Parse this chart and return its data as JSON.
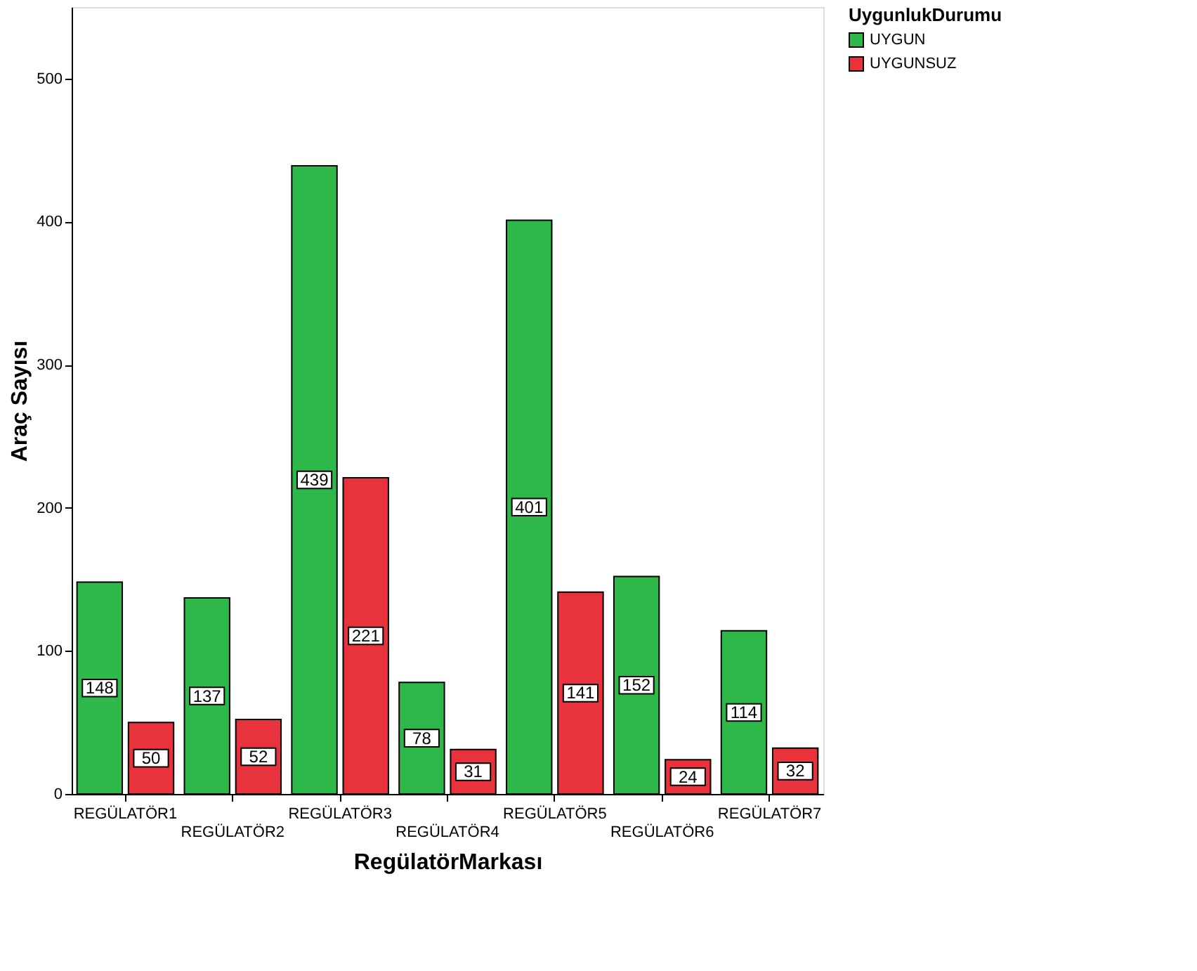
{
  "chart_data": {
    "type": "bar",
    "xlabel": "RegülatörMarkası",
    "ylabel": "Araç Sayısı",
    "legend_title": "UygunlukDurumu",
    "legend": "top right",
    "categories": [
      "REGÜLATÖR1",
      "REGÜLATÖR2",
      "REGÜLATÖR3",
      "REGÜLATÖR4",
      "REGÜLATÖR5",
      "REGÜLATÖR6",
      "REGÜLATÖR7"
    ],
    "series": [
      {
        "name": "UYGUN",
        "color": "#2eb84a",
        "values": [
          148,
          137,
          439,
          78,
          401,
          152,
          114
        ]
      },
      {
        "name": "UYGUNSUZ",
        "color": "#e8323c",
        "values": [
          50,
          52,
          221,
          31,
          141,
          24,
          32
        ]
      }
    ],
    "ylim": [
      0,
      550
    ],
    "yticks": [
      0,
      100,
      200,
      300,
      400,
      500
    ],
    "grid": false,
    "data_labels": true
  }
}
